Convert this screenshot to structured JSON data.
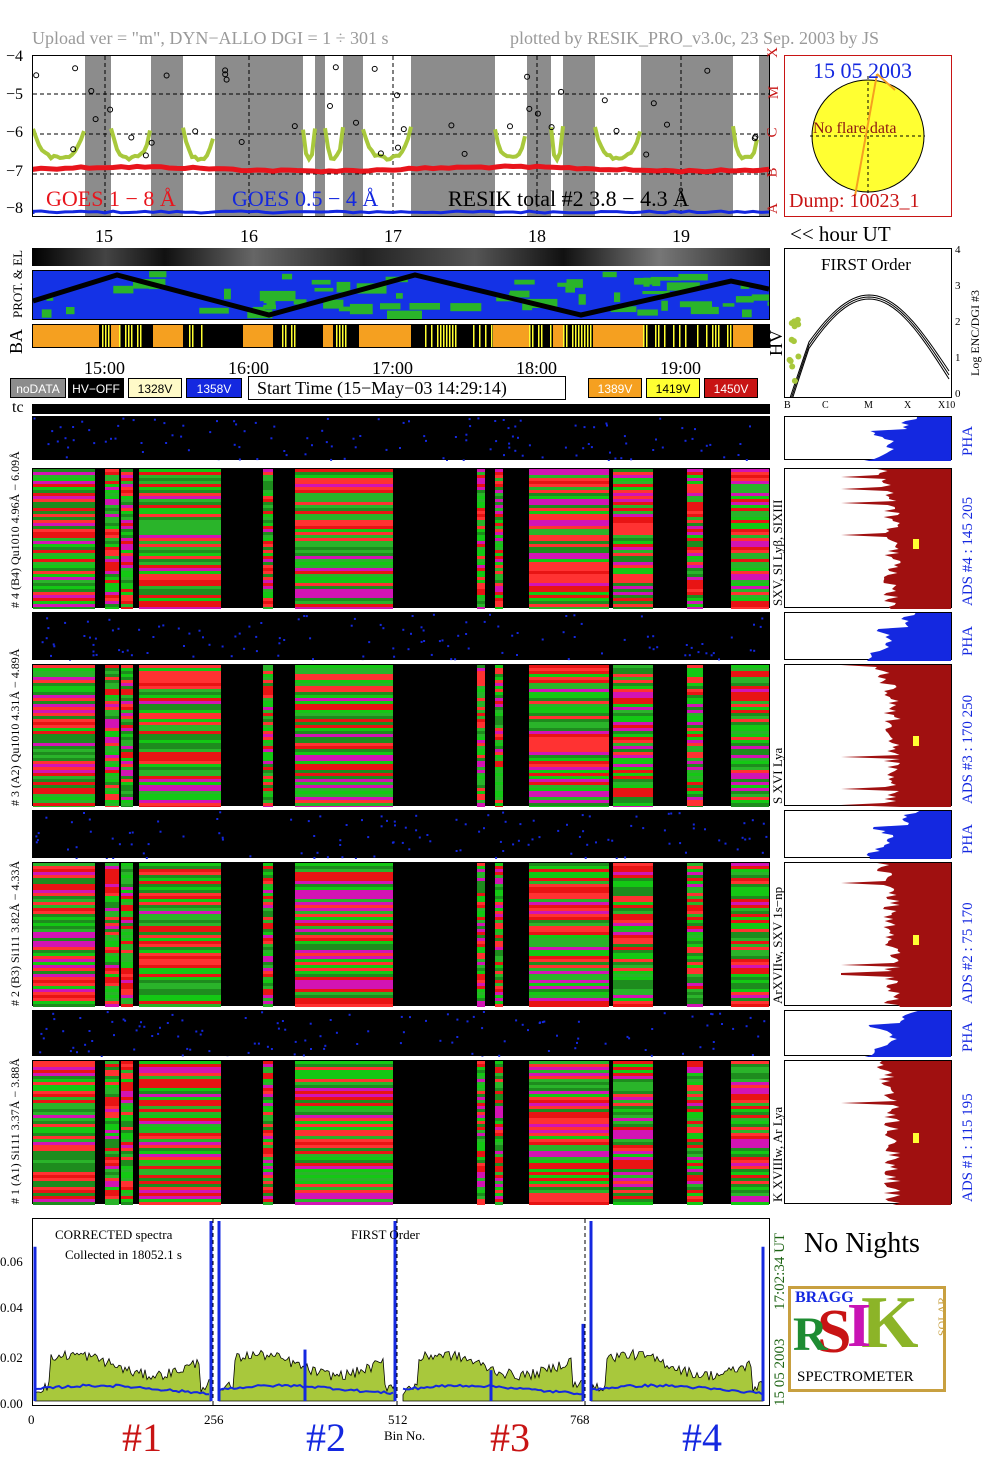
{
  "header": {
    "left": "Upload ver = \"m\", DYN−ALLO DGI =   1 ÷ 301 s",
    "right": "plotted by RESIK_PRO_v3.0c, 23 Sep. 2003 by JS"
  },
  "goes_panel": {
    "yticks": [
      "−4",
      "−5",
      "−6",
      "−7",
      "−8"
    ],
    "class_letters": [
      "X",
      "M",
      "C",
      "B",
      "A"
    ],
    "xticks": [
      "15",
      "16",
      "17",
      "18",
      "19"
    ],
    "legend_goes_long": "GOES 1 − 8 Å",
    "legend_goes_short": "GOES 0.5 − 4 Å",
    "legend_resik": "RESIK total #2  3.8 − 4.3 Å",
    "colors": {
      "goes_long": "#e8141c",
      "goes_short": "#1428e0",
      "resik": "#a8c83c",
      "night": "#8c8c8c"
    }
  },
  "sun_panel": {
    "date": "15 05 2003",
    "no_flare": "No flare data",
    "dump": "Dump: 10023_1"
  },
  "hour_ut": "<< hour UT",
  "status_rows": {
    "prot_label": "PROT. & EL",
    "ba_label": "BA",
    "hv_label": "HV"
  },
  "time_axis": [
    "15:00",
    "16:00",
    "17:00",
    "18:00",
    "19:00"
  ],
  "hv_legend": [
    {
      "label": "noDATA",
      "bg": "#8c8c8c",
      "fg": "#ffffff"
    },
    {
      "label": "HV−OFF",
      "bg": "#000000",
      "fg": "#ffffff"
    },
    {
      "label": "1328V",
      "bg": "#fffac8",
      "fg": "#000000"
    },
    {
      "label": "1358V",
      "bg": "#1428e0",
      "fg": "#ffffff"
    },
    {
      "label": "1389V",
      "bg": "#f5a020",
      "fg": "#ffffff"
    },
    {
      "label": "1419V",
      "bg": "#ffff32",
      "fg": "#000000"
    },
    {
      "label": "1450V",
      "bg": "#c81414",
      "fg": "#ffffff"
    }
  ],
  "start_time": "Start Time (15−May−03 14:29:14)",
  "first_order": {
    "title": "FIRST Order",
    "ylabel": "Log ENC/DGI #3",
    "yticks": [
      "0",
      "1",
      "2",
      "3",
      "4"
    ],
    "xticks": [
      "B",
      "C",
      "M",
      "X",
      "X10"
    ]
  },
  "tc_label": "tc",
  "channels": [
    {
      "pha_label": "4.96Å − 6.09Å",
      "row_label": "# 4 (B4) Qu1010  4.96Å − 6.09Å",
      "spec_lines": "SXV, SI Lyβ, SIXIII",
      "ads": "ADS #4 :   145 205",
      "pha": "PHA"
    },
    {
      "pha_label": "4.31Å − 4.89Å",
      "row_label": "# 3 (A2) Qu1010  4.31Å − 4.89Å",
      "spec_lines": "S XVI Lya",
      "ads": "ADS #3 :   170 250",
      "pha": "PHA"
    },
    {
      "pha_label": "3.82Å − 4.33Å",
      "row_label": "# 2 (B3) Si111  3.82Å − 4.33Å",
      "spec_lines": "ArXVIIw, SXV 1s−np",
      "ads": "ADS #2 :    75 170",
      "pha": "PHA"
    },
    {
      "pha_label": "3.37Å − 3.88Å",
      "row_label": "# 1 (A1) Si111  3.37Å − 3.88Å",
      "spec_lines": "K XVIIIw, Ar Lya",
      "ads": "ADS #1 :   115 195",
      "pha": "PHA"
    }
  ],
  "spectrum": {
    "note1": "CORRECTED spectra",
    "note2": "Collected in 18052.1 s",
    "note3": "FIRST Order",
    "yticks": [
      "0.06",
      "0.04",
      "0.02",
      "0.00"
    ],
    "xticks": [
      "0",
      "256",
      "512",
      "768"
    ],
    "xlabel": "Bin No.",
    "right_time": "17:02:34 UT",
    "right_date": "15 05 2003",
    "detectors": [
      {
        "label": "#1",
        "color": "#c81414"
      },
      {
        "label": "#2",
        "color": "#1428e0"
      },
      {
        "label": "#3",
        "color": "#c81414"
      },
      {
        "label": "#4",
        "color": "#1428e0"
      }
    ]
  },
  "no_nights": "No Nights",
  "logo": {
    "caption": "SPECTROMETER",
    "k": "K",
    "s": "S",
    "i": "I",
    "r": "R",
    "bragg": "BRAGG",
    "solar": "SOLAR"
  },
  "chart_data": {
    "type": "line",
    "title": "",
    "xlabel": "Bin No.",
    "ylabel": "",
    "xlim": [
      0,
      1024
    ],
    "ylim": [
      0,
      0.07
    ],
    "series": [],
    "x": [
      0,
      256,
      512,
      768,
      1024
    ]
  }
}
